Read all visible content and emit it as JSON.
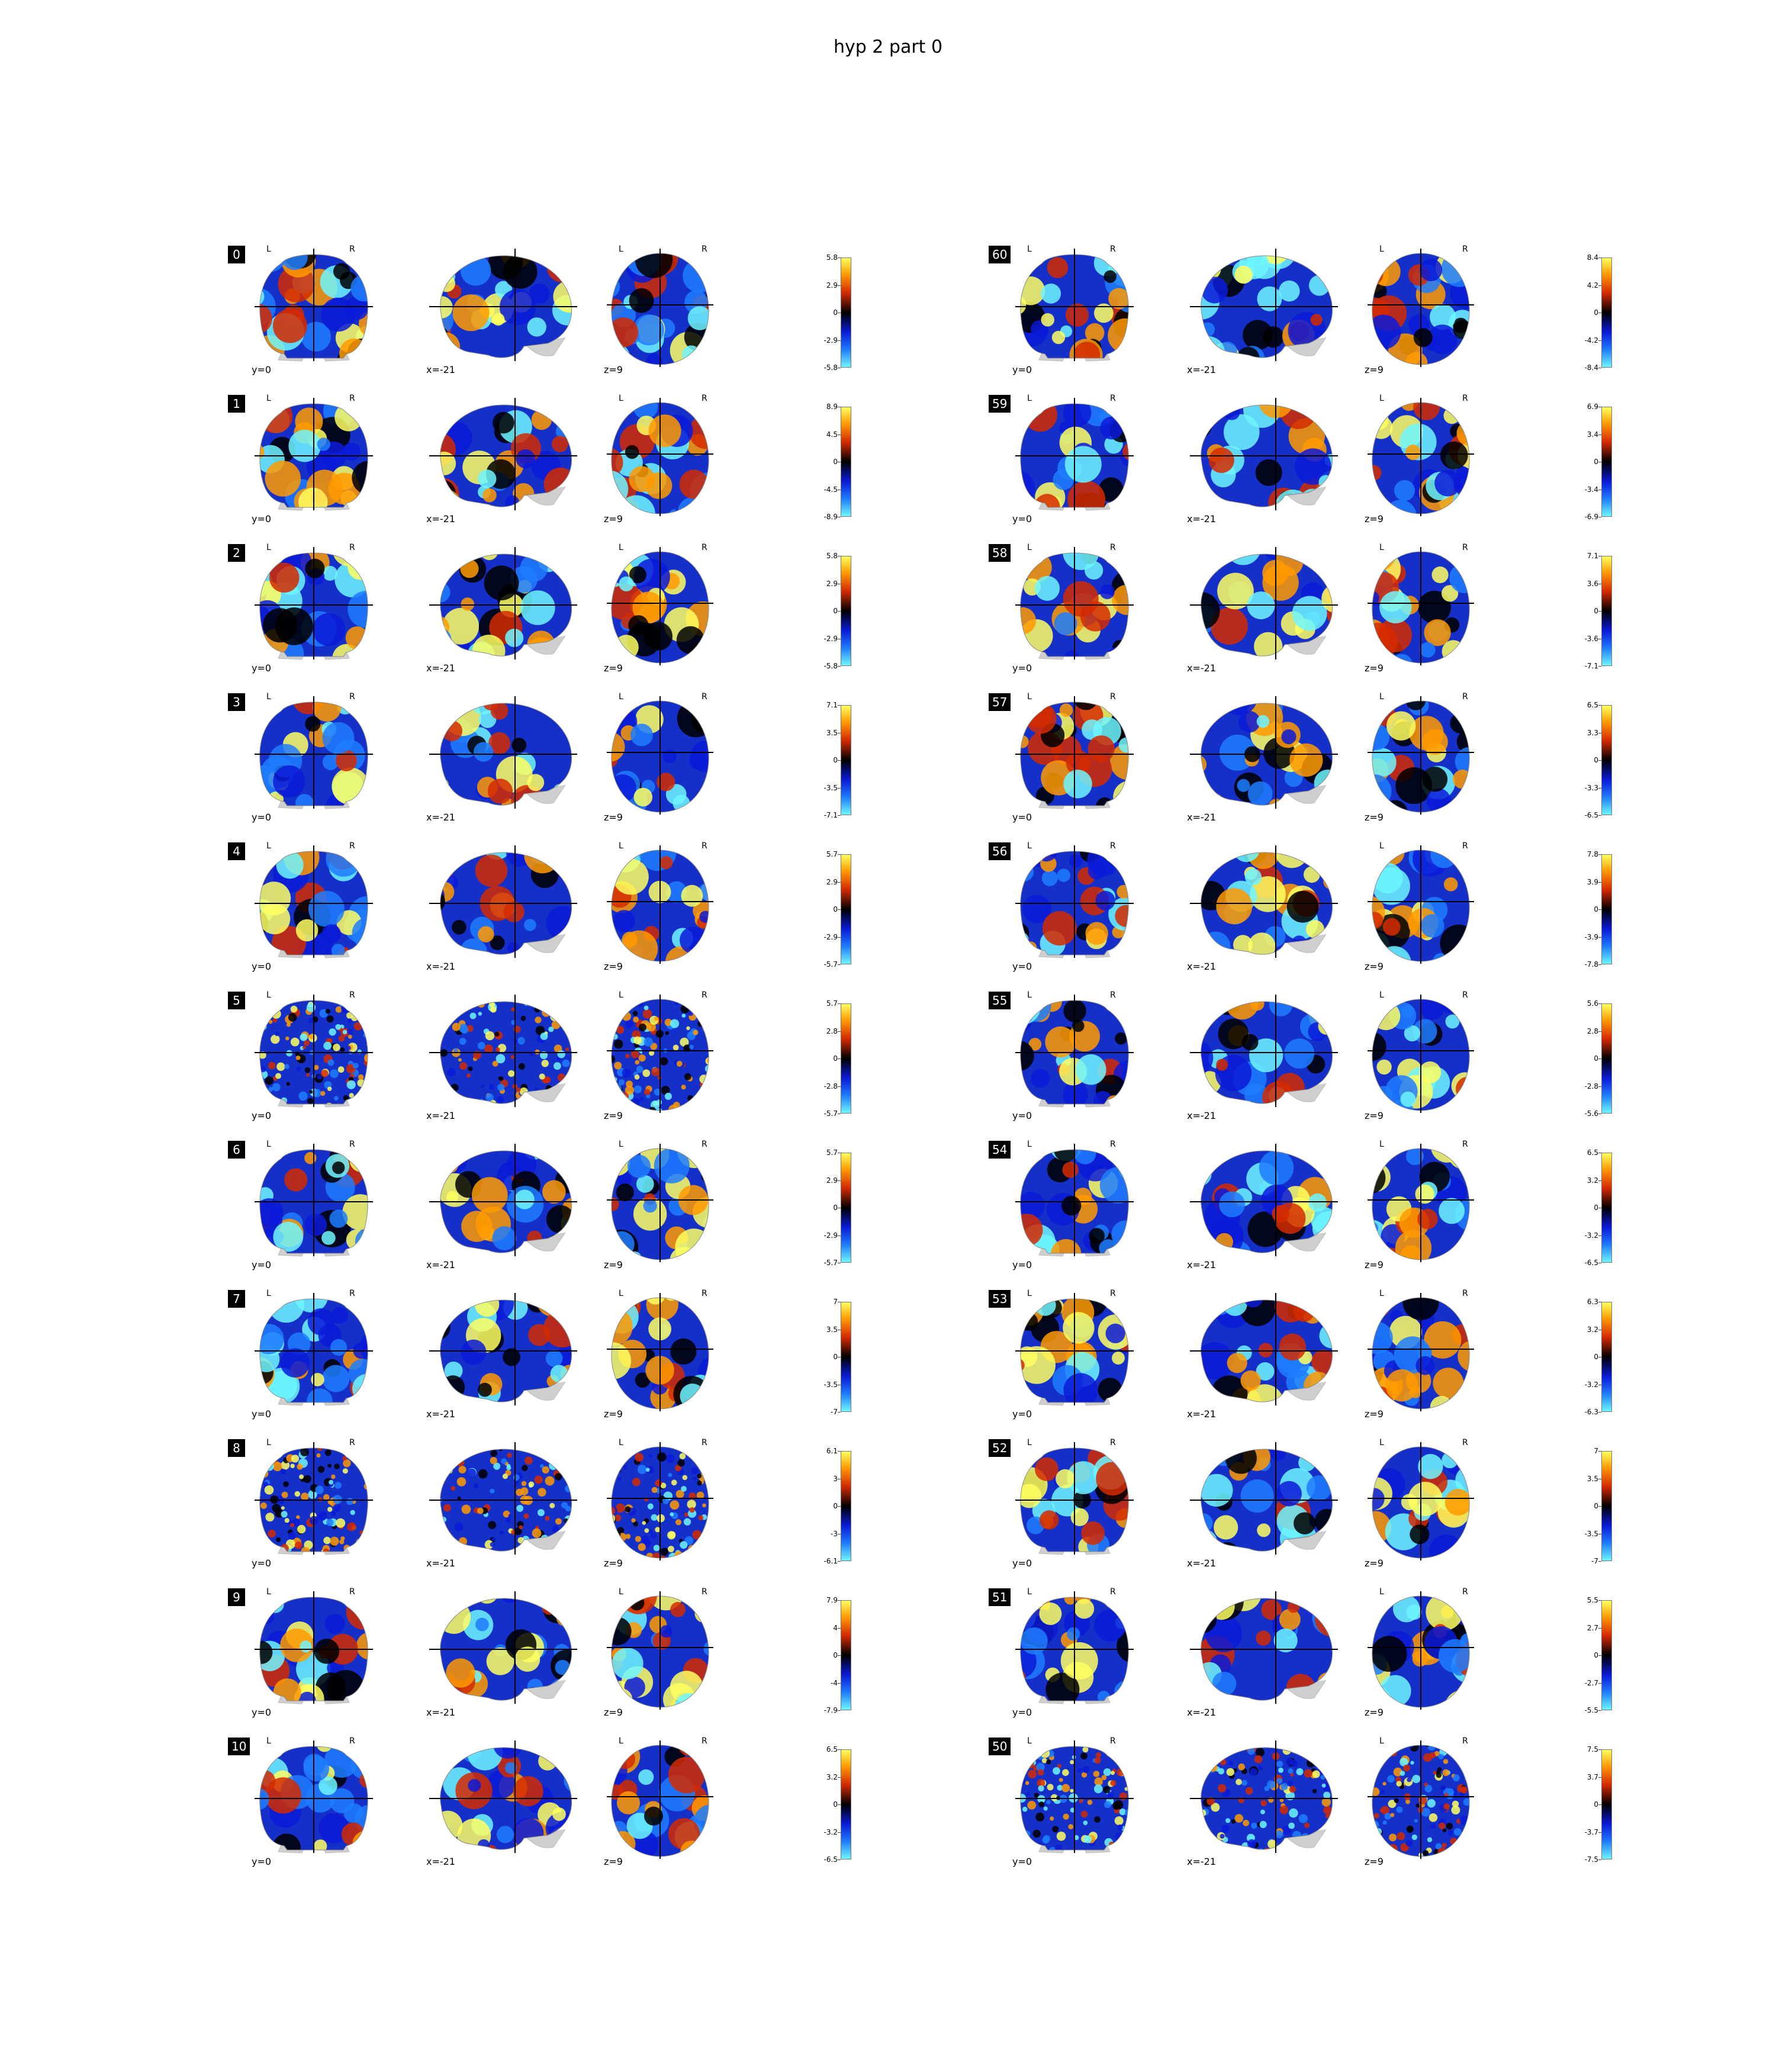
{
  "title": "hyp 2 part 0",
  "views": {
    "coronal": "y=0",
    "sagittal": "x=-21",
    "axial": "z=9",
    "left": "L",
    "right": "R"
  },
  "colormap": [
    "#6ff6ff",
    "#1e7cff",
    "#0a1ad8",
    "#000000",
    "#d42a00",
    "#ff9a00",
    "#ffff60"
  ],
  "panels": [
    {
      "id": "0",
      "ticks": [
        "5.8",
        "2.9",
        "0",
        "-2.9",
        "-5.8"
      ]
    },
    {
      "id": "1",
      "ticks": [
        "8.9",
        "4.5",
        "0",
        "-4.5",
        "-8.9"
      ]
    },
    {
      "id": "2",
      "ticks": [
        "5.8",
        "2.9",
        "0",
        "-2.9",
        "-5.8"
      ]
    },
    {
      "id": "3",
      "ticks": [
        "7.1",
        "3.5",
        "0",
        "-3.5",
        "-7.1"
      ]
    },
    {
      "id": "4",
      "ticks": [
        "5.7",
        "2.9",
        "0",
        "-2.9",
        "-5.7"
      ]
    },
    {
      "id": "5",
      "ticks": [
        "5.7",
        "2.8",
        "0",
        "-2.8",
        "-5.7"
      ]
    },
    {
      "id": "6",
      "ticks": [
        "5.7",
        "2.9",
        "0",
        "-2.9",
        "-5.7"
      ]
    },
    {
      "id": "7",
      "ticks": [
        "7",
        "3.5",
        "0",
        "-3.5",
        "-7"
      ]
    },
    {
      "id": "8",
      "ticks": [
        "6.1",
        "3",
        "0",
        "-3",
        "-6.1"
      ]
    },
    {
      "id": "9",
      "ticks": [
        "7.9",
        "4",
        "0",
        "-4",
        "-7.9"
      ]
    },
    {
      "id": "10",
      "ticks": [
        "6.5",
        "3.2",
        "0",
        "-3.2",
        "-6.5"
      ]
    },
    {
      "id": "60",
      "ticks": [
        "8.4",
        "4.2",
        "0",
        "-4.2",
        "-8.4"
      ]
    },
    {
      "id": "59",
      "ticks": [
        "6.9",
        "3.4",
        "0",
        "-3.4",
        "-6.9"
      ]
    },
    {
      "id": "58",
      "ticks": [
        "7.1",
        "3.6",
        "0",
        "-3.6",
        "-7.1"
      ]
    },
    {
      "id": "57",
      "ticks": [
        "6.5",
        "3.3",
        "0",
        "-3.3",
        "-6.5"
      ]
    },
    {
      "id": "56",
      "ticks": [
        "7.8",
        "3.9",
        "0",
        "-3.9",
        "-7.8"
      ]
    },
    {
      "id": "55",
      "ticks": [
        "5.6",
        "2.8",
        "0",
        "-2.8",
        "-5.6"
      ]
    },
    {
      "id": "54",
      "ticks": [
        "6.5",
        "3.2",
        "0",
        "-3.2",
        "-6.5"
      ]
    },
    {
      "id": "53",
      "ticks": [
        "6.3",
        "3.2",
        "0",
        "-3.2",
        "-6.3"
      ]
    },
    {
      "id": "52",
      "ticks": [
        "7",
        "3.5",
        "0",
        "-3.5",
        "-7"
      ]
    },
    {
      "id": "51",
      "ticks": [
        "5.5",
        "2.7",
        "0",
        "-2.7",
        "-5.5"
      ]
    },
    {
      "id": "50",
      "ticks": [
        "7.5",
        "3.7",
        "0",
        "-3.7",
        "-7.5"
      ]
    }
  ]
}
